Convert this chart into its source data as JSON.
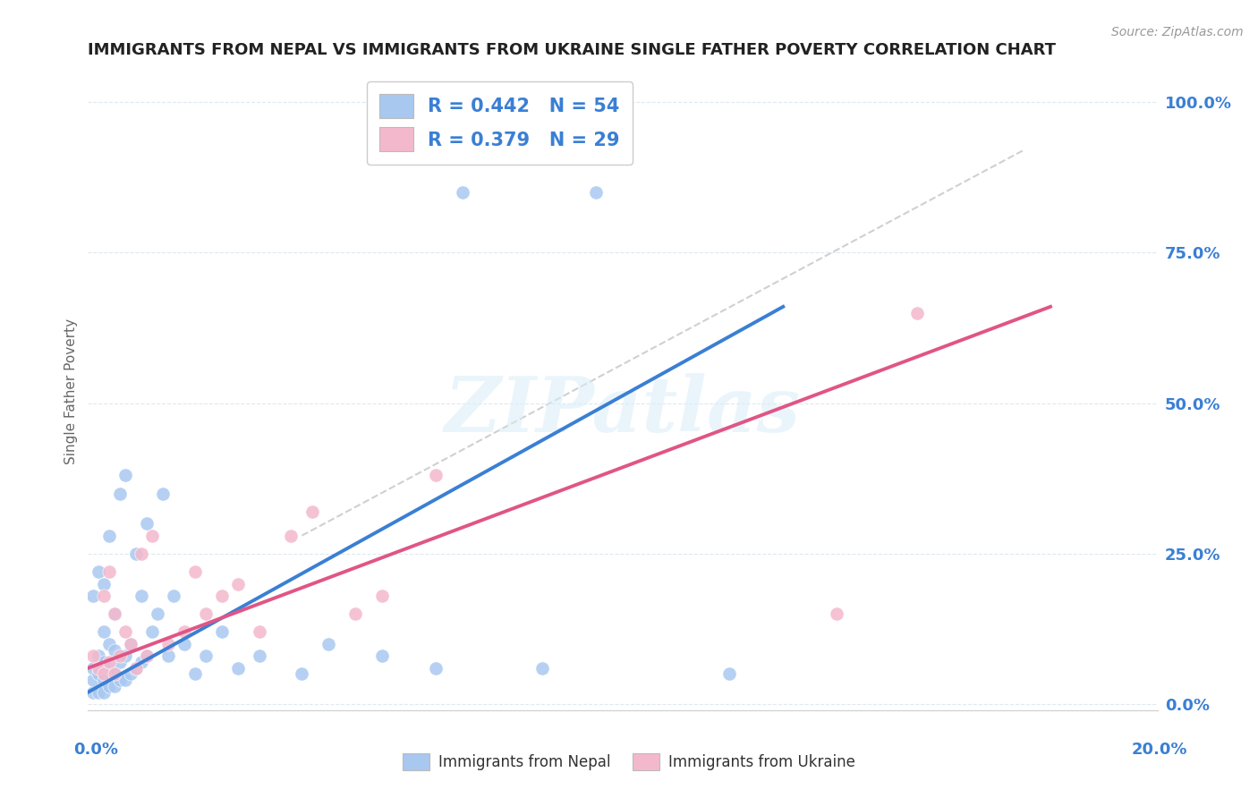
{
  "title": "IMMIGRANTS FROM NEPAL VS IMMIGRANTS FROM UKRAINE SINGLE FATHER POVERTY CORRELATION CHART",
  "source": "Source: ZipAtlas.com",
  "ylabel": "Single Father Poverty",
  "legend_label1": "Immigrants from Nepal",
  "legend_label2": "Immigrants from Ukraine",
  "color_nepal": "#a8c8f0",
  "color_ukraine": "#f4b8cc",
  "color_nepal_line": "#3a7fd4",
  "color_ukraine_line": "#e05585",
  "color_ref_line": "#c8c8c8",
  "xlim": [
    0.0,
    0.2
  ],
  "ylim": [
    -0.01,
    1.05
  ],
  "right_yticks": [
    0.0,
    0.25,
    0.5,
    0.75,
    1.0
  ],
  "right_yticklabels": [
    "0.0%",
    "25.0%",
    "50.0%",
    "75.0%",
    "100.0%"
  ],
  "watermark": "ZIPatlas",
  "background_color": "#ffffff",
  "grid_color": "#e0e8f0",
  "R_nepal": 0.442,
  "N_nepal": 54,
  "R_ukraine": 0.379,
  "N_ukraine": 29,
  "legend_text_color": "#3a7fd4",
  "nepal_x": [
    0.001,
    0.001,
    0.001,
    0.001,
    0.002,
    0.002,
    0.002,
    0.002,
    0.003,
    0.003,
    0.003,
    0.003,
    0.003,
    0.004,
    0.004,
    0.004,
    0.004,
    0.005,
    0.005,
    0.005,
    0.005,
    0.006,
    0.006,
    0.006,
    0.007,
    0.007,
    0.007,
    0.008,
    0.008,
    0.009,
    0.009,
    0.01,
    0.01,
    0.011,
    0.011,
    0.012,
    0.013,
    0.014,
    0.015,
    0.016,
    0.018,
    0.02,
    0.022,
    0.025,
    0.028,
    0.032,
    0.04,
    0.045,
    0.055,
    0.065,
    0.07,
    0.085,
    0.095,
    0.12
  ],
  "nepal_y": [
    0.02,
    0.04,
    0.06,
    0.18,
    0.02,
    0.05,
    0.08,
    0.22,
    0.02,
    0.04,
    0.07,
    0.12,
    0.2,
    0.03,
    0.06,
    0.1,
    0.28,
    0.03,
    0.05,
    0.09,
    0.15,
    0.04,
    0.07,
    0.35,
    0.04,
    0.08,
    0.38,
    0.05,
    0.1,
    0.06,
    0.25,
    0.07,
    0.18,
    0.08,
    0.3,
    0.12,
    0.15,
    0.35,
    0.08,
    0.18,
    0.1,
    0.05,
    0.08,
    0.12,
    0.06,
    0.08,
    0.05,
    0.1,
    0.08,
    0.06,
    0.85,
    0.06,
    0.85,
    0.05
  ],
  "ukraine_x": [
    0.001,
    0.002,
    0.003,
    0.003,
    0.004,
    0.004,
    0.005,
    0.005,
    0.006,
    0.007,
    0.008,
    0.009,
    0.01,
    0.011,
    0.012,
    0.015,
    0.018,
    0.02,
    0.022,
    0.025,
    0.028,
    0.032,
    0.038,
    0.042,
    0.05,
    0.055,
    0.065,
    0.14,
    0.155
  ],
  "ukraine_y": [
    0.08,
    0.06,
    0.05,
    0.18,
    0.07,
    0.22,
    0.05,
    0.15,
    0.08,
    0.12,
    0.1,
    0.06,
    0.25,
    0.08,
    0.28,
    0.1,
    0.12,
    0.22,
    0.15,
    0.18,
    0.2,
    0.12,
    0.28,
    0.32,
    0.15,
    0.18,
    0.38,
    0.15,
    0.65
  ],
  "nepal_line_x": [
    0.0,
    0.13
  ],
  "nepal_line_y": [
    0.02,
    0.66
  ],
  "ukraine_line_x": [
    0.0,
    0.18
  ],
  "ukraine_line_y": [
    0.06,
    0.66
  ],
  "ref_line_x": [
    0.04,
    0.175
  ],
  "ref_line_y": [
    0.28,
    0.92
  ]
}
